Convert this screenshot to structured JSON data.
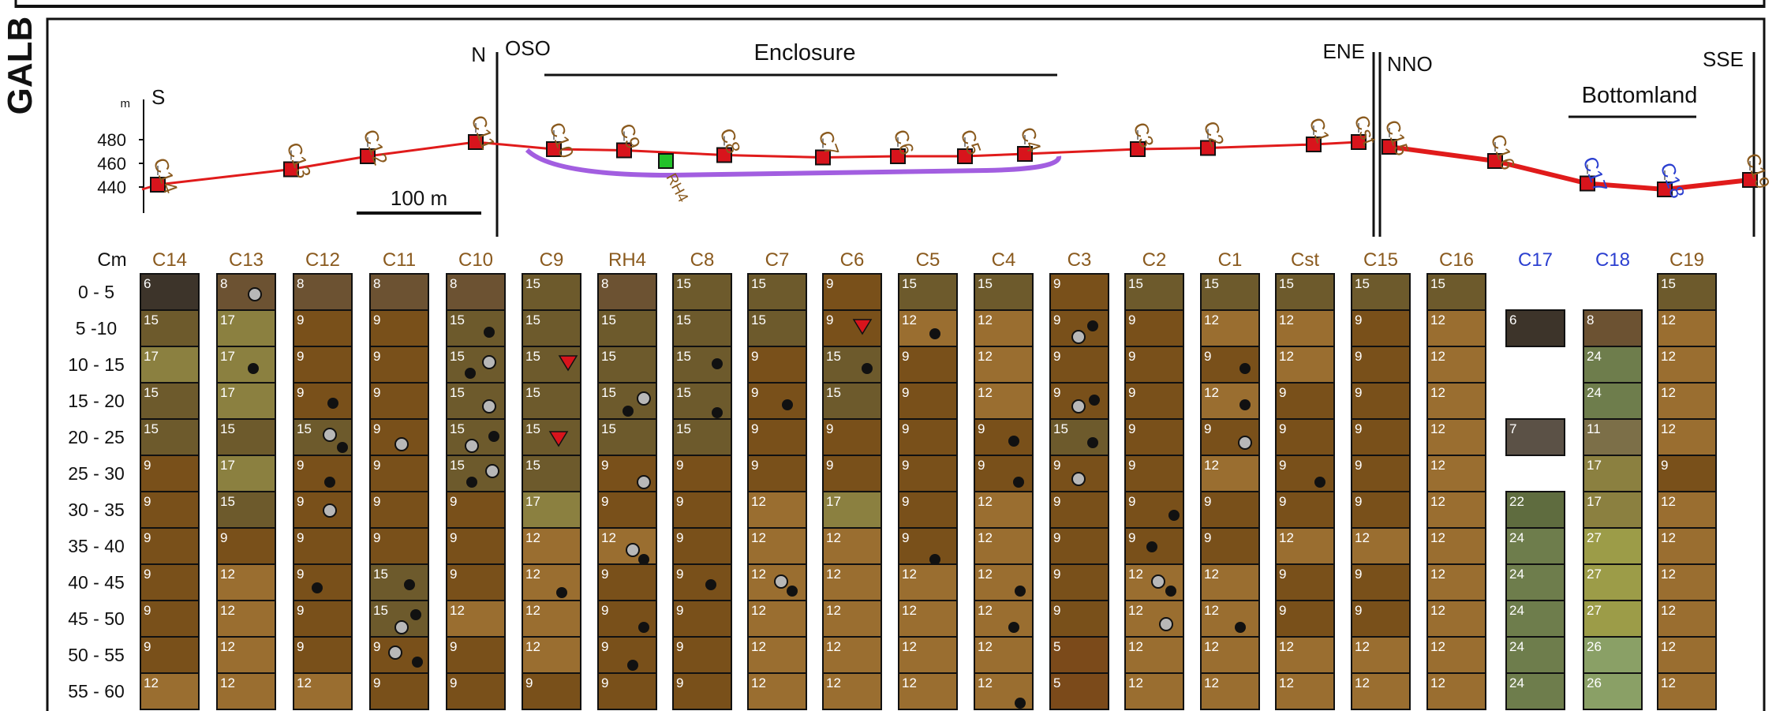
{
  "panel_label": "GALB",
  "transect": {
    "elevation_unit": "m",
    "elevation_ticks": [
      "480",
      "460",
      "440"
    ],
    "scale_bar": "100 m",
    "enclosure_label": "Enclosure",
    "bottomland_label": "Bottomland",
    "directions": [
      {
        "id": "s",
        "text": "S"
      },
      {
        "id": "n",
        "text": "N"
      },
      {
        "id": "oso",
        "text": "OSO"
      },
      {
        "id": "ene",
        "text": "ENE"
      },
      {
        "id": "nno",
        "text": "NNO"
      },
      {
        "id": "sse",
        "text": "SSE"
      }
    ],
    "points": [
      {
        "label": "C14",
        "elevation": 442,
        "kind": "core",
        "color": "#8a5a1e"
      },
      {
        "label": "C13",
        "elevation": 455,
        "kind": "core",
        "color": "#8a5a1e"
      },
      {
        "label": "C12",
        "elevation": 466,
        "kind": "core",
        "color": "#8a5a1e"
      },
      {
        "label": "C11",
        "elevation": 478,
        "kind": "core",
        "color": "#8a5a1e"
      },
      {
        "label": "C10",
        "elevation": 472,
        "kind": "core",
        "color": "#8a5a1e"
      },
      {
        "label": "C9",
        "elevation": 471,
        "kind": "core",
        "color": "#8a5a1e"
      },
      {
        "label": "RH4",
        "elevation": 462,
        "kind": "profile",
        "color": "#8a5a1e"
      },
      {
        "label": "C8",
        "elevation": 467,
        "kind": "core",
        "color": "#8a5a1e"
      },
      {
        "label": "C7",
        "elevation": 465,
        "kind": "core",
        "color": "#8a5a1e"
      },
      {
        "label": "C6",
        "elevation": 466,
        "kind": "core",
        "color": "#8a5a1e"
      },
      {
        "label": "C5",
        "elevation": 466,
        "kind": "core",
        "color": "#8a5a1e"
      },
      {
        "label": "C4",
        "elevation": 468,
        "kind": "core",
        "color": "#8a5a1e"
      },
      {
        "label": "C3",
        "elevation": 472,
        "kind": "core",
        "color": "#8a5a1e"
      },
      {
        "label": "C2",
        "elevation": 473,
        "kind": "core",
        "color": "#8a5a1e"
      },
      {
        "label": "C1",
        "elevation": 476,
        "kind": "core",
        "color": "#8a5a1e"
      },
      {
        "label": "Cst",
        "elevation": 478,
        "kind": "core",
        "color": "#8a5a1e"
      },
      {
        "label": "C15",
        "elevation": 474,
        "kind": "core",
        "color": "#8a5a1e"
      },
      {
        "label": "C16",
        "elevation": 462,
        "kind": "core",
        "color": "#8a5a1e"
      },
      {
        "label": "C17",
        "elevation": 443,
        "kind": "core",
        "color": "#2b3fd0"
      },
      {
        "label": "C18",
        "elevation": 438,
        "kind": "core",
        "color": "#2b3fd0"
      },
      {
        "label": "C19",
        "elevation": 446,
        "kind": "core",
        "color": "#8a5a1e"
      }
    ]
  },
  "cores": {
    "depth_header": "Cm",
    "depth_labels": [
      "0 - 5",
      "5 -10",
      "10 - 15",
      "15 - 20",
      "20 - 25",
      "25 - 30",
      "30 - 35",
      "35 - 40",
      "40 - 45",
      "45 - 50",
      "50 - 55",
      "55 - 60"
    ],
    "columns": [
      {
        "label": "C14",
        "color": "#8a5a1e",
        "cells": [
          "6",
          "15",
          "17",
          "15",
          "15",
          "9",
          "9",
          "9",
          "9",
          "9",
          "9",
          "12"
        ]
      },
      {
        "label": "C13",
        "color": "#8a5a1e",
        "cells": [
          "8",
          "17",
          "17",
          "17",
          "15",
          "17",
          "15",
          "9",
          "12",
          "12",
          "12",
          "12"
        ]
      },
      {
        "label": "C12",
        "color": "#8a5a1e",
        "cells": [
          "8",
          "9",
          "9",
          "9",
          "15",
          "9",
          "9",
          "9",
          "9",
          "9",
          "9",
          "12"
        ]
      },
      {
        "label": "C11",
        "color": "#8a5a1e",
        "cells": [
          "8",
          "9",
          "9",
          "9",
          "9",
          "9",
          "9",
          "9",
          "15",
          "15",
          "9",
          "9"
        ]
      },
      {
        "label": "C10",
        "color": "#8a5a1e",
        "cells": [
          "8",
          "15",
          "15",
          "15",
          "15",
          "15",
          "9",
          "9",
          "9",
          "12",
          "9",
          "9"
        ]
      },
      {
        "label": "C9",
        "color": "#8a5a1e",
        "cells": [
          "15",
          "15",
          "15",
          "15",
          "15",
          "15",
          "17",
          "12",
          "12",
          "12",
          "12",
          "9"
        ]
      },
      {
        "label": "RH4",
        "color": "#8a5a1e",
        "cells": [
          "8",
          "15",
          "15",
          "15",
          "15",
          "9",
          "9",
          "12",
          "9",
          "9",
          "9",
          "9"
        ]
      },
      {
        "label": "C8",
        "color": "#8a5a1e",
        "cells": [
          "15",
          "15",
          "15",
          "15",
          "15",
          "9",
          "9",
          "9",
          "9",
          "9",
          "9",
          "9"
        ]
      },
      {
        "label": "C7",
        "color": "#8a5a1e",
        "cells": [
          "15",
          "15",
          "9",
          "9",
          "9",
          "9",
          "12",
          "12",
          "12",
          "12",
          "12",
          "12"
        ]
      },
      {
        "label": "C6",
        "color": "#8a5a1e",
        "cells": [
          "9",
          "9",
          "15",
          "15",
          "9",
          "9",
          "17",
          "12",
          "12",
          "12",
          "12",
          "12"
        ]
      },
      {
        "label": "C5",
        "color": "#8a5a1e",
        "cells": [
          "15",
          "12",
          "9",
          "9",
          "9",
          "9",
          "9",
          "9",
          "12",
          "12",
          "12",
          "12"
        ]
      },
      {
        "label": "C4",
        "color": "#8a5a1e",
        "cells": [
          "15",
          "12",
          "12",
          "12",
          "9",
          "9",
          "12",
          "12",
          "12",
          "12",
          "12",
          "12"
        ]
      },
      {
        "label": "C3",
        "color": "#8a5a1e",
        "cells": [
          "9",
          "9",
          "9",
          "9",
          "15",
          "9",
          "9",
          "9",
          "9",
          "9",
          "5",
          "5"
        ]
      },
      {
        "label": "C2",
        "color": "#8a5a1e",
        "cells": [
          "15",
          "9",
          "9",
          "9",
          "9",
          "9",
          "9",
          "9",
          "12",
          "12",
          "12",
          "12"
        ]
      },
      {
        "label": "C1",
        "color": "#8a5a1e",
        "cells": [
          "15",
          "12",
          "9",
          "12",
          "9",
          "12",
          "9",
          "9",
          "12",
          "12",
          "12",
          "12"
        ]
      },
      {
        "label": "Cst",
        "color": "#8a5a1e",
        "cells": [
          "15",
          "12",
          "12",
          "9",
          "9",
          "9",
          "9",
          "12",
          "9",
          "9",
          "12",
          "12"
        ]
      },
      {
        "label": "C15",
        "color": "#8a5a1e",
        "cells": [
          "15",
          "9",
          "9",
          "9",
          "9",
          "9",
          "9",
          "12",
          "9",
          "9",
          "12",
          "12"
        ]
      },
      {
        "label": "C16",
        "color": "#8a5a1e",
        "cells": [
          "15",
          "12",
          "12",
          "12",
          "12",
          "12",
          "12",
          "12",
          "12",
          "12",
          "12",
          "12"
        ]
      },
      {
        "label": "C17",
        "color": "#2b3fd0",
        "cells": [
          "",
          "6",
          "",
          "",
          "7",
          "",
          "22",
          "24",
          "24",
          "24",
          "24",
          "24"
        ]
      },
      {
        "label": "C18",
        "color": "#2b3fd0",
        "cells": [
          "",
          "8",
          "24",
          "24",
          "11",
          "17",
          "17",
          "27",
          "27",
          "27",
          "26",
          "26"
        ]
      },
      {
        "label": "C19",
        "color": "#8a5a1e",
        "cells": [
          "15",
          "12",
          "12",
          "12",
          "12",
          "9",
          "12",
          "12",
          "12",
          "12",
          "12",
          "12"
        ]
      }
    ]
  },
  "colors": {
    "profile_line": "#e01b1b",
    "marker": "#d8141c",
    "rh4_marker": "#22c22a",
    "enclosure_curve": "#a25ee0",
    "text_brown": "#8a5a1e",
    "text_blue": "#2b3fd0",
    "dot_black": "#111111",
    "dot_gray": "#b8b8b8",
    "triangle": "#d8141c"
  }
}
